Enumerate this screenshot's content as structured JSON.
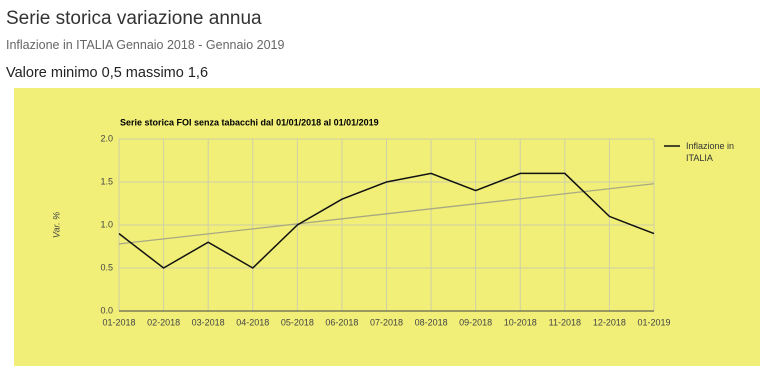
{
  "header": {
    "title": "Serie storica variazione annua",
    "subtitle": "Inflazione in ITALIA Gennaio 2018 - Gennaio 2019",
    "summary": "Valore minimo 0,5 massimo 1,6"
  },
  "chart_data": {
    "type": "line",
    "title": "Serie storica FOI senza tabacchi dal 01/01/2018 al 01/01/2019",
    "y_label": "Var. %",
    "categories": [
      "01-2018",
      "02-2018",
      "03-2018",
      "04-2018",
      "05-2018",
      "06-2018",
      "07-2018",
      "08-2018",
      "09-2018",
      "10-2018",
      "11-2018",
      "12-2018",
      "01-2019"
    ],
    "series": [
      {
        "name": "Inflazione in ITALIA",
        "color": "#111111",
        "values": [
          0.9,
          0.5,
          0.8,
          0.5,
          1.0,
          1.3,
          1.5,
          1.6,
          1.4,
          1.6,
          1.6,
          1.1,
          0.9
        ]
      }
    ],
    "trendline": {
      "color": "#a8a882",
      "values": [
        0.78,
        1.48
      ]
    },
    "ylim": [
      0,
      2
    ],
    "yticks": [
      {
        "value": 0,
        "label": "0.0"
      },
      0.5,
      {
        "value": 1,
        "label": "1.0"
      },
      1.5,
      {
        "value": 2,
        "label": "2.0"
      }
    ],
    "grid": true,
    "background": "#f1ef78",
    "legend": "right"
  }
}
